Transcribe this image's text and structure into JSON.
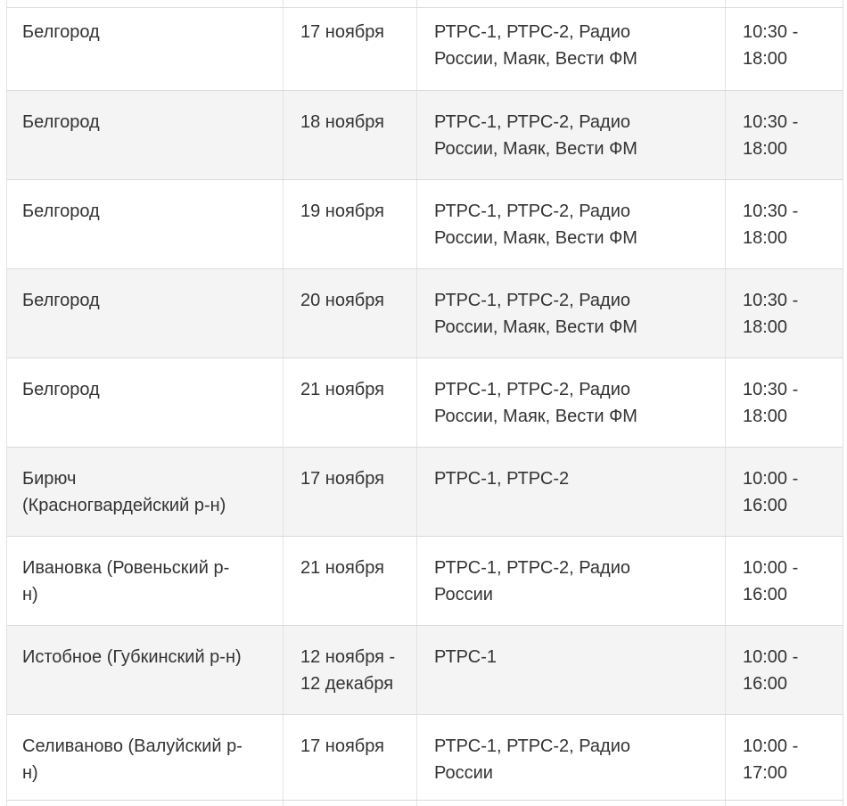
{
  "colors": {
    "row_alt_background": "#f4f4f4",
    "row_background": "#ffffff",
    "border": "#dbdbdb",
    "text": "#333333"
  },
  "table": {
    "rows": [
      {
        "city": "Белгород",
        "date": "17 ноября",
        "channels": "РТРС-1, РТРС-2, Радио\nРоссии, Маяк, Вести ФМ",
        "time": "10:30 -\n18:00"
      },
      {
        "city": "Белгород",
        "date": "18 ноября",
        "channels": "РТРС-1, РТРС-2, Радио\nРоссии, Маяк, Вести ФМ",
        "time": "10:30 -\n18:00"
      },
      {
        "city": "Белгород",
        "date": "19 ноября",
        "channels": "РТРС-1, РТРС-2, Радио\nРоссии, Маяк, Вести ФМ",
        "time": "10:30 -\n18:00"
      },
      {
        "city": "Белгород",
        "date": "20 ноября",
        "channels": "РТРС-1, РТРС-2, Радио\nРоссии, Маяк, Вести ФМ",
        "time": "10:30 -\n18:00"
      },
      {
        "city": "Белгород",
        "date": "21 ноября",
        "channels": "РТРС-1, РТРС-2, Радио\nРоссии, Маяк, Вести ФМ",
        "time": "10:30 -\n18:00"
      },
      {
        "city": "Бирюч\n(Красногвардейский р-н)",
        "date": "17 ноября",
        "channels": "РТРС-1, РТРС-2",
        "time": "10:00 -\n16:00"
      },
      {
        "city": "Ивановка (Ровеньский р-\nн)",
        "date": "21 ноября",
        "channels": "РТРС-1, РТРС-2, Радио\nРоссии",
        "time": "10:00 -\n16:00"
      },
      {
        "city": "Истобное (Губкинский р-н)",
        "date": "12 ноября -\n12 декабря",
        "channels": "РТРС-1",
        "time": "10:00 -\n16:00"
      },
      {
        "city": "Селиваново (Валуйский р-\nн)",
        "date": "17 ноября",
        "channels": "РТРС-1, РТРС-2, Радио\nРоссии",
        "time": "10:00 -\n17:00"
      }
    ]
  }
}
